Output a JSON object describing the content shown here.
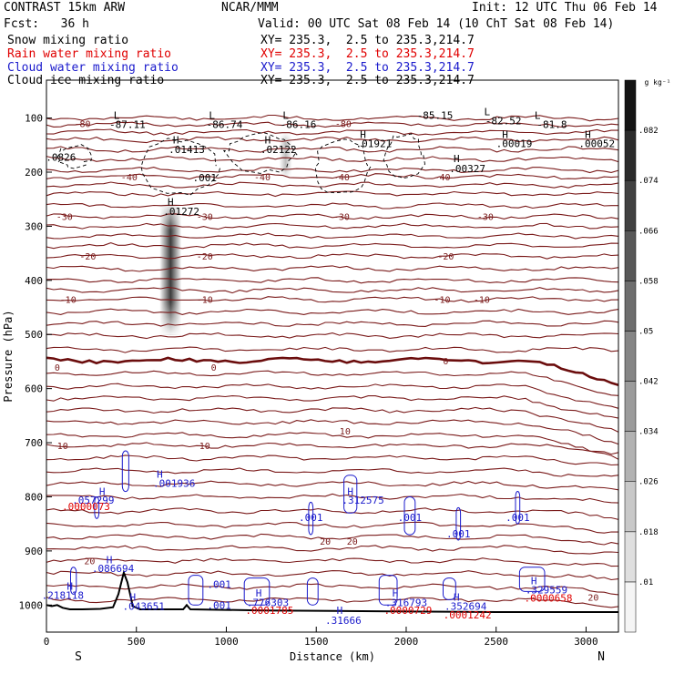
{
  "header": {
    "model": "CONTRAST 15km ARW",
    "org": "NCAR/MMM",
    "init": "Init: 12 UTC Thu 06 Feb 14",
    "fcst": "Fcst:   36 h",
    "valid": "Valid: 00 UTC Sat 08 Feb 14 (10 ChT Sat 08 Feb 14)",
    "fields": [
      {
        "name": "Snow mixing ratio",
        "xy": "XY= 235.3,  2.5 to 235.3,214.7",
        "color": "#000000"
      },
      {
        "name": "Rain water mixing ratio",
        "xy": "XY= 235.3,  2.5 to 235.3,214.7",
        "color": "#e00000"
      },
      {
        "name": "Cloud water mixing ratio",
        "xy": "XY= 235.3,  2.5 to 235.3,214.7",
        "color": "#1a1acc"
      },
      {
        "name": "Cloud ice mixing ratio",
        "xy": "XY= 235.3,  2.5 to 235.3,214.7",
        "color": "#000000"
      }
    ]
  },
  "chart_data": {
    "type": "cross-section contour",
    "xlabel": "Distance (km)",
    "ylabel": "Pressure (hPa)",
    "xlim": [
      0,
      3180
    ],
    "ylim": [
      1050,
      30
    ],
    "x_ticks": [
      0,
      500,
      1000,
      1500,
      2000,
      2500,
      3000
    ],
    "y_ticks": [
      100,
      200,
      300,
      400,
      500,
      600,
      700,
      800,
      900,
      1000
    ],
    "x_end_labels": {
      "left": "S",
      "right": "N"
    },
    "colorbar": {
      "units": "g kg⁻¹",
      "levels": [
        ".01",
        ".018",
        ".026",
        ".034",
        ".042",
        ".05",
        ".058",
        ".066",
        ".074",
        ".082"
      ]
    },
    "temperature_isotherm_labels": [
      {
        "value": "-80",
        "x": 200,
        "p": 110
      },
      {
        "value": "-80",
        "x": 1650,
        "p": 110
      },
      {
        "value": "-40",
        "x": 460,
        "p": 208
      },
      {
        "value": "-40",
        "x": 1200,
        "p": 208
      },
      {
        "value": "-40",
        "x": 1640,
        "p": 208
      },
      {
        "value": "-40",
        "x": 2200,
        "p": 208
      },
      {
        "value": "-30",
        "x": 100,
        "p": 282
      },
      {
        "value": "-30",
        "x": 880,
        "p": 282
      },
      {
        "value": "-30",
        "x": 1640,
        "p": 282
      },
      {
        "value": "-30",
        "x": 2440,
        "p": 282
      },
      {
        "value": "-20",
        "x": 230,
        "p": 355
      },
      {
        "value": "-20",
        "x": 880,
        "p": 355
      },
      {
        "value": "-20",
        "x": 2220,
        "p": 355
      },
      {
        "value": "-10",
        "x": 120,
        "p": 435
      },
      {
        "value": "-10",
        "x": 880,
        "p": 435
      },
      {
        "value": "-10",
        "x": 2200,
        "p": 435
      },
      {
        "value": "-10",
        "x": 2420,
        "p": 435
      },
      {
        "value": "0",
        "x": 60,
        "p": 560
      },
      {
        "value": "0",
        "x": 930,
        "p": 560
      },
      {
        "value": "0",
        "x": 2220,
        "p": 548
      },
      {
        "value": "10",
        "x": 90,
        "p": 705
      },
      {
        "value": "10",
        "x": 880,
        "p": 705
      },
      {
        "value": "10",
        "x": 1660,
        "p": 678
      },
      {
        "value": "20",
        "x": 240,
        "p": 918
      },
      {
        "value": "20",
        "x": 1550,
        "p": 882
      },
      {
        "value": "20",
        "x": 1700,
        "p": 882
      },
      {
        "value": "20",
        "x": 3040,
        "p": 985
      }
    ],
    "ice_minima_labels": [
      {
        "text": "L",
        "x": 390,
        "p": 95
      },
      {
        "text": "-87.11",
        "x": 450,
        "p": 112
      },
      {
        "text": "L",
        "x": 920,
        "p": 95
      },
      {
        "text": "-86.74",
        "x": 990,
        "p": 112
      },
      {
        "text": "L",
        "x": 1330,
        "p": 95
      },
      {
        "text": "-86.16",
        "x": 1400,
        "p": 112
      },
      {
        "text": "-85.15",
        "x": 2160,
        "p": 95
      },
      {
        "text": "L",
        "x": 2450,
        "p": 88
      },
      {
        "text": "-82.52",
        "x": 2540,
        "p": 105
      },
      {
        "text": "L",
        "x": 2730,
        "p": 95
      },
      {
        "text": "-81.8",
        "x": 2810,
        "p": 112
      }
    ],
    "ice_maxima_labels": [
      {
        "text": ".0826",
        "x": 80,
        "p": 172
      },
      {
        "text": "H",
        "x": 720,
        "p": 140
      },
      {
        "text": ".01413",
        "x": 780,
        "p": 158
      },
      {
        "text": ".001",
        "x": 880,
        "p": 210
      },
      {
        "text": "H",
        "x": 1230,
        "p": 140
      },
      {
        "text": ".02122",
        "x": 1290,
        "p": 158
      },
      {
        "text": "H",
        "x": 1760,
        "p": 130
      },
      {
        "text": ".01921",
        "x": 1820,
        "p": 147
      },
      {
        "text": "H",
        "x": 2550,
        "p": 130
      },
      {
        "text": ".00019",
        "x": 2600,
        "p": 147
      },
      {
        "text": "H",
        "x": 3010,
        "p": 130
      },
      {
        "text": ".00052",
        "x": 3060,
        "p": 147
      },
      {
        "text": "H",
        "x": 2280,
        "p": 175
      },
      {
        "text": ".00327",
        "x": 2340,
        "p": 193
      },
      {
        "text": "H",
        "x": 690,
        "p": 255
      },
      {
        "text": ".01272",
        "x": 750,
        "p": 272
      }
    ],
    "cloud_water_labels": [
      {
        "text": "H",
        "x": 310,
        "p": 790
      },
      {
        "text": ".057299",
        "x": 260,
        "p": 806
      },
      {
        "text": "H",
        "x": 630,
        "p": 758
      },
      {
        "text": ".001936",
        "x": 710,
        "p": 775
      },
      {
        "text": "H",
        "x": 1690,
        "p": 790
      },
      {
        "text": ".312575",
        "x": 1760,
        "p": 806
      },
      {
        "text": ".001",
        "x": 1470,
        "p": 838
      },
      {
        "text": ".001",
        "x": 2020,
        "p": 838
      },
      {
        "text": ".001",
        "x": 2290,
        "p": 868
      },
      {
        "text": ".001",
        "x": 2620,
        "p": 838
      },
      {
        "text": "H",
        "x": 350,
        "p": 916
      },
      {
        "text": ".086694",
        "x": 370,
        "p": 932
      },
      {
        "text": "H",
        "x": 130,
        "p": 965
      },
      {
        "text": ".218118",
        "x": 90,
        "p": 982
      },
      {
        "text": "H",
        "x": 480,
        "p": 985
      },
      {
        "text": ".043651",
        "x": 540,
        "p": 1002
      },
      {
        "text": ".001",
        "x": 960,
        "p": 962
      },
      {
        "text": ".001",
        "x": 960,
        "p": 1000
      },
      {
        "text": "H",
        "x": 1180,
        "p": 978
      },
      {
        "text": ".776303",
        "x": 1230,
        "p": 995
      },
      {
        "text": "H",
        "x": 1630,
        "p": 1010
      },
      {
        "text": ".31666",
        "x": 1650,
        "p": 1028
      },
      {
        "text": "H",
        "x": 1940,
        "p": 978
      },
      {
        "text": ".316793",
        "x": 2000,
        "p": 995
      },
      {
        "text": "H",
        "x": 2280,
        "p": 985
      },
      {
        "text": ".352694",
        "x": 2330,
        "p": 1002
      },
      {
        "text": "H",
        "x": 2710,
        "p": 955
      },
      {
        "text": ".329559",
        "x": 2780,
        "p": 972
      }
    ],
    "rain_labels": [
      {
        "text": ".0000073",
        "x": 220,
        "p": 818
      },
      {
        "text": ".0001785",
        "x": 1240,
        "p": 1010
      },
      {
        "text": ".0000729",
        "x": 2010,
        "p": 1010
      },
      {
        "text": ".0001242",
        "x": 2340,
        "p": 1018
      },
      {
        "text": ".0000658",
        "x": 2790,
        "p": 987
      }
    ],
    "snow_shading_columns": [
      {
        "x_center": 690,
        "p_top": 260,
        "p_bottom": 500,
        "peak": 0.082
      },
      {
        "x_center": 1330,
        "p_top": 130,
        "p_bottom": 210,
        "peak": 0.03
      }
    ]
  }
}
